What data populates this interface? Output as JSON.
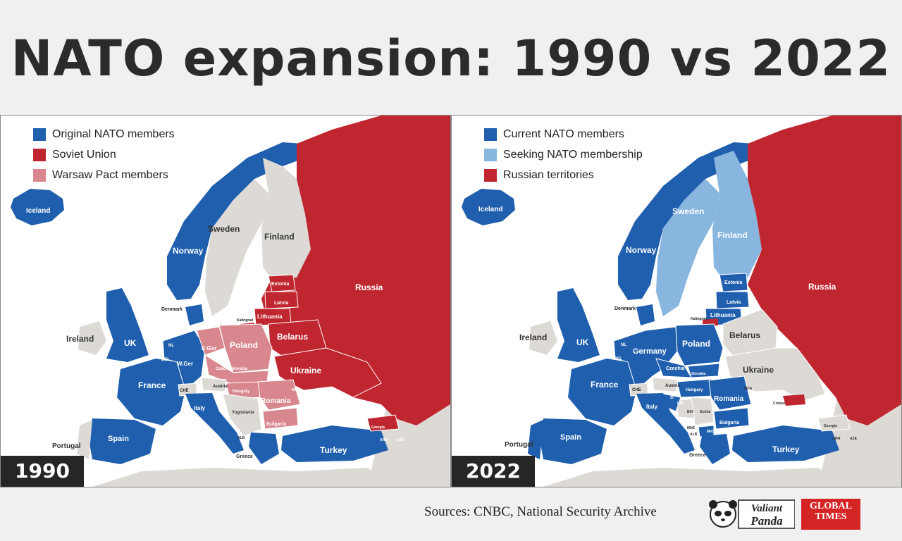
{
  "title": "NATO expansion: 1990 vs 2022",
  "colors": {
    "nato": "#1f5fae",
    "seeking": "#88b6df",
    "russia": "#c0262f",
    "warsaw": "#d9878e",
    "neutral": "#dddad6",
    "sea": "#ffffff"
  },
  "map_1990": {
    "year": "1990",
    "legend": [
      {
        "label": "Original NATO members",
        "color": "#1f5fae"
      },
      {
        "label": "Soviet Union",
        "color": "#c0262f"
      },
      {
        "label": "Warsaw Pact members",
        "color": "#d9878e"
      }
    ],
    "labels": {
      "iceland": "Iceland",
      "norway": "Norway",
      "sweden": "Sweden",
      "finland": "Finland",
      "russia": "Russia",
      "estonia": "Estonia",
      "latvia": "Latvia",
      "lithuania": "Lithuania",
      "kaliningrad": "Kalingrad",
      "belarus": "Belarus",
      "ukraine": "Ukraine",
      "poland": "Poland",
      "egermany": "E.Ger",
      "wgermany": "W.Ger",
      "denmark": "Denmark",
      "ireland": "Ireland",
      "uk": "UK",
      "nl": "NL",
      "bel": "BEL",
      "france": "France",
      "che": "CHE",
      "austria": "Austria",
      "czechoslovakia": "Czechoslovakia",
      "hungary": "Hungary",
      "romania": "Romania",
      "bulgaria": "Bulgaria",
      "yugoslavia": "Yugoslavia",
      "italy": "Italy",
      "spain": "Spain",
      "portugal": "Portugal",
      "greece": "Greece",
      "alb": "ALB",
      "turkey": "Turkey",
      "mda": "MDA",
      "georgia": "Georgia",
      "arm": "ARM",
      "aze": "AZE"
    }
  },
  "map_2022": {
    "year": "2022",
    "legend": [
      {
        "label": "Current NATO members",
        "color": "#1f5fae"
      },
      {
        "label": "Seeking NATO membership",
        "color": "#88b6df"
      },
      {
        "label": "Russian territories",
        "color": "#c0262f"
      }
    ],
    "labels": {
      "iceland": "Iceland",
      "norway": "Norway",
      "sweden": "Sweden",
      "finland": "Finland",
      "russia": "Russia",
      "estonia": "Estonia",
      "latvia": "Latvia",
      "lithuania": "Lithuania",
      "kaliningrad": "Kalingrad",
      "belarus": "Belarus",
      "ukraine": "Ukraine",
      "poland": "Poland",
      "germany": "Germany",
      "denmark": "Denmark",
      "ireland": "Ireland",
      "uk": "UK",
      "nl": "NL",
      "bel": "BEL",
      "france": "France",
      "che": "CHE",
      "austria": "Austria",
      "czechia": "Czechia",
      "slovakia": "Slovakia",
      "hungary": "Hungary",
      "romania": "Romania",
      "bulgaria": "Bulgaria",
      "si": "SI",
      "hrv": "HRV",
      "bih": "BIH",
      "serbia": "Serbia",
      "mne": "MNE",
      "mkd": "MKD",
      "alb": "ALB",
      "italy": "Italy",
      "spain": "Spain",
      "portugal": "Portugal",
      "greece": "Greece",
      "turkey": "Turkey",
      "mda": "MDA",
      "crimea": "Crimea",
      "georgia": "Georgia",
      "arm": "ARM",
      "aze": "AZE"
    }
  },
  "footer": {
    "sources": "Sources: CNBC, National Security Archive",
    "logo1_line1": "Valiant",
    "logo1_line2": "Panda",
    "logo2_line1": "GLOBAL",
    "logo2_line2": "TIMES"
  }
}
